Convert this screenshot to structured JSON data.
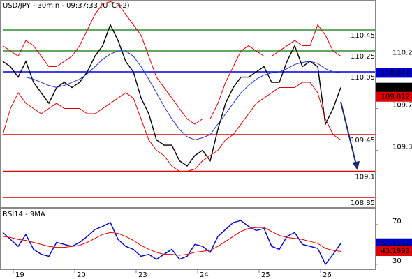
{
  "chart_data": [
    {
      "type": "line",
      "title": "USD/JPY - 30min - 09:37:33 (UTC+2)",
      "categories": [
        null,
        "19",
        null,
        null,
        null,
        null,
        null,
        null,
        null,
        "20",
        null,
        null,
        null,
        null,
        null,
        null,
        null,
        "23",
        null,
        null,
        null,
        null,
        null,
        null,
        null,
        "24",
        null,
        null,
        null,
        null,
        null,
        null,
        null,
        "25",
        null,
        null,
        null,
        null,
        null,
        null,
        null,
        "26",
        null,
        null,
        null
      ],
      "series": [
        {
          "color": "#000000",
          "values": [
            110.15,
            110.1,
            110.0,
            110.15,
            109.95,
            109.85,
            109.75,
            109.9,
            109.95,
            109.9,
            109.95,
            110.05,
            110.2,
            110.3,
            110.5,
            110.35,
            110.15,
            110.05,
            109.8,
            109.65,
            109.4,
            109.35,
            109.35,
            109.2,
            109.15,
            109.25,
            109.3,
            109.2,
            109.5,
            109.75,
            109.9,
            110.0,
            110.0,
            110.05,
            110.1,
            109.95,
            109.95,
            110.15,
            110.3,
            110.1,
            110.15,
            110.1,
            109.55,
            109.7,
            109.9
          ]
        },
        {
          "color": "#2233cc",
          "values": [
            110.0,
            110.0,
            110.0,
            110.0,
            109.98,
            109.95,
            109.92,
            109.9,
            109.92,
            109.95,
            109.98,
            110.03,
            110.1,
            110.17,
            110.22,
            110.25,
            110.25,
            110.2,
            110.1,
            109.98,
            109.85,
            109.72,
            109.6,
            109.5,
            109.43,
            109.4,
            109.42,
            109.45,
            109.55,
            109.65,
            109.75,
            109.85,
            109.92,
            109.98,
            110.02,
            110.04,
            110.05,
            110.08,
            110.12,
            110.14,
            110.15,
            110.13,
            110.08,
            110.05,
            110.04
          ]
        },
        {
          "color": "#dd0000",
          "values": [
            110.3,
            110.25,
            110.2,
            110.35,
            110.3,
            110.2,
            110.1,
            110.1,
            110.15,
            110.2,
            110.3,
            110.45,
            110.6,
            110.7,
            110.72,
            110.7,
            110.6,
            110.5,
            110.4,
            110.2,
            110.0,
            109.9,
            109.8,
            109.7,
            109.6,
            109.55,
            109.6,
            109.6,
            109.75,
            109.95,
            110.1,
            110.25,
            110.3,
            110.25,
            110.2,
            110.2,
            110.25,
            110.3,
            110.35,
            110.3,
            110.3,
            110.5,
            110.4,
            110.25,
            110.2
          ]
        },
        {
          "color": "#dd0000",
          "values": [
            109.45,
            109.7,
            109.85,
            109.75,
            109.7,
            109.65,
            109.7,
            109.75,
            109.7,
            109.7,
            109.7,
            109.65,
            109.65,
            109.7,
            109.75,
            109.8,
            109.85,
            109.8,
            109.6,
            109.4,
            109.3,
            109.25,
            109.15,
            109.1,
            109.1,
            109.12,
            109.2,
            109.25,
            109.3,
            109.4,
            109.45,
            109.55,
            109.65,
            109.75,
            109.8,
            109.85,
            109.9,
            109.9,
            109.9,
            109.95,
            109.95,
            109.85,
            109.6,
            109.45,
            109.4
          ]
        }
      ],
      "ylim": [
        108.75,
        110.737
      ],
      "yticks": [
        110.2,
        109.7,
        109.3
      ],
      "levels": [
        {
          "value": 110.45,
          "color": "#2e8b2e"
        },
        {
          "value": 110.25,
          "color": "#2e8b2e"
        },
        {
          "value": 110.05,
          "color": "#0000dd"
        },
        {
          "value": 109.45,
          "color": "#dd0000"
        },
        {
          "value": 109.1,
          "color": "#dd0000"
        },
        {
          "value": 108.85,
          "color": "#dd0000"
        }
      ],
      "markers": [
        {
          "value": 110.041,
          "color": "#0000cc"
        },
        {
          "value": 109.899,
          "color": "#000000"
        },
        {
          "value": 109.812,
          "color": "#dd0000"
        }
      ]
    },
    {
      "type": "line",
      "title": "RSI14 - 9MA",
      "series": [
        {
          "color": "#0000cc",
          "values": [
            62,
            55,
            48,
            60,
            45,
            40,
            38,
            52,
            50,
            48,
            52,
            58,
            65,
            68,
            72,
            55,
            48,
            45,
            38,
            40,
            35,
            40,
            45,
            35,
            38,
            50,
            48,
            42,
            58,
            65,
            72,
            74,
            68,
            64,
            66,
            48,
            45,
            58,
            62,
            50,
            48,
            46,
            30,
            40,
            51
          ]
        },
        {
          "color": "#dd0000",
          "values": [
            58,
            57,
            55,
            54,
            52,
            50,
            48,
            47,
            47,
            48,
            49,
            52,
            56,
            60,
            62,
            61,
            58,
            54,
            49,
            45,
            42,
            40,
            40,
            39,
            40,
            42,
            43,
            44,
            48,
            53,
            58,
            63,
            66,
            67,
            67,
            63,
            59,
            57,
            56,
            55,
            53,
            51,
            46,
            44,
            43
          ]
        }
      ],
      "ylim": [
        25,
        86
      ],
      "yticks": [
        70,
        30
      ],
      "markers": [
        {
          "value": 51.1152,
          "color": "#0000cc"
        },
        {
          "value": 43.1993,
          "color": "#dd0000"
        }
      ]
    }
  ]
}
